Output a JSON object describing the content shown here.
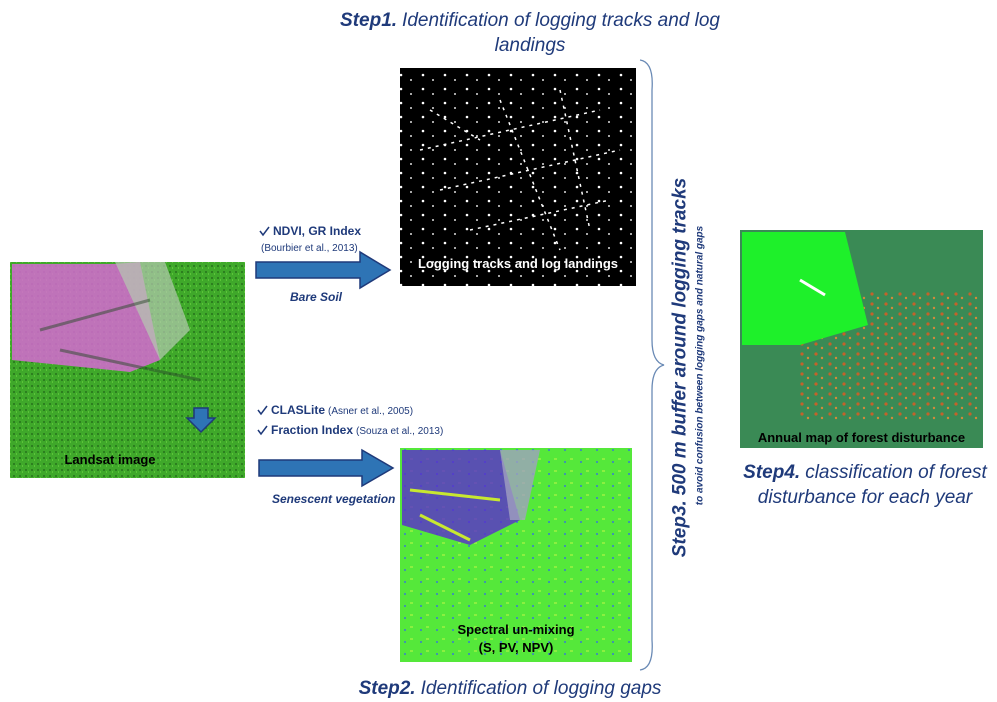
{
  "step1": {
    "label": "Step1.",
    "text": "Identification of logging tracks and log landings"
  },
  "logging_image": {
    "caption": "Logging tracks and log landings"
  },
  "bare_soil": {
    "method": "NDVI, GR Index",
    "reference": "(Bourbier et al., 2013)",
    "arrow_label": "Bare Soil"
  },
  "landsat": {
    "caption": "Landsat image"
  },
  "senescent": {
    "methods": [
      {
        "name": "CLASLite",
        "reference": "(Asner et al., 2005)"
      },
      {
        "name": "Fraction Index",
        "reference": "(Souza et al., 2013)"
      }
    ],
    "arrow_label": "Senescent vegetation"
  },
  "unmixing_image": {
    "caption_line1": "Spectral un-mixing",
    "caption_line2": "(S, PV, NPV)"
  },
  "step2": {
    "label": "Step2.",
    "text": "Identification of logging gaps"
  },
  "step3": {
    "label": "Step3.",
    "text": "500 m buffer around logging tracks",
    "note": "to avoid confusion between logging gaps and natural gaps"
  },
  "annual_map": {
    "caption": "Annual map of forest disturbance"
  },
  "step4": {
    "label": "Step4.",
    "text": "classification of forest disturbance for each year"
  }
}
